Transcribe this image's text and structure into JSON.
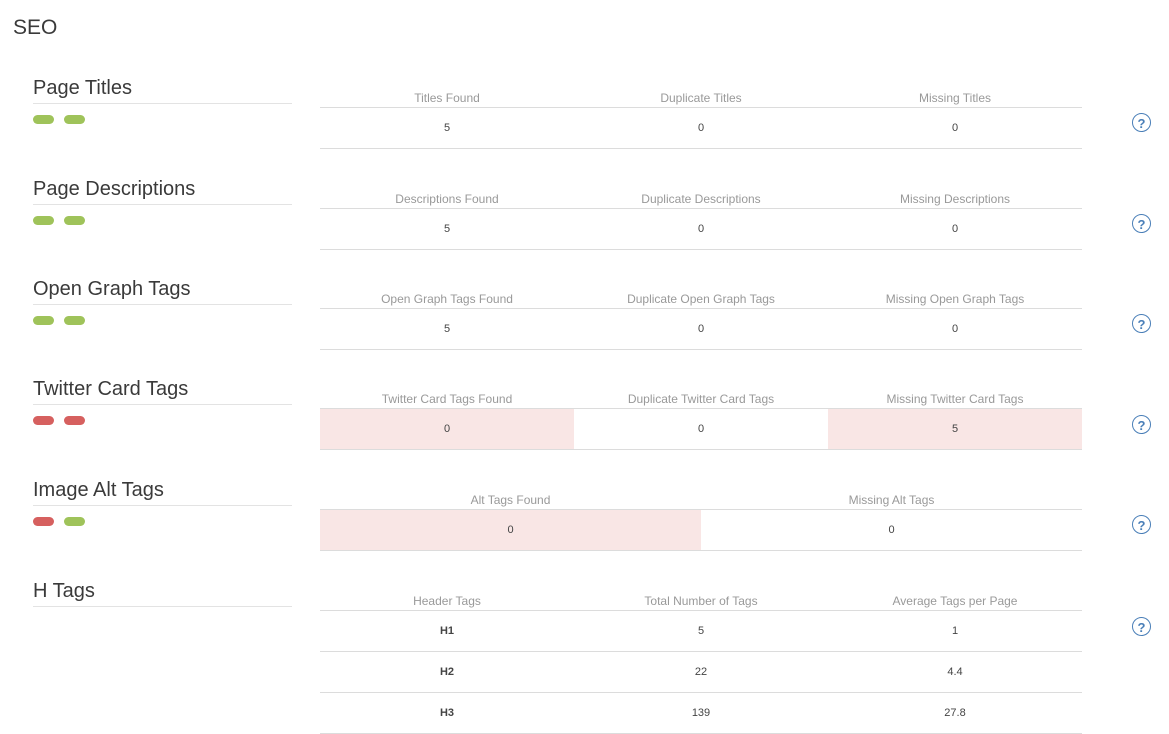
{
  "page": {
    "title": "SEO"
  },
  "help_icon_glyph": "?",
  "sections": {
    "page_titles": {
      "label": "Page Titles",
      "status": [
        "good",
        "good"
      ],
      "headers": [
        "Titles Found",
        "Duplicate Titles",
        "Missing Titles"
      ],
      "values": [
        "5",
        "0",
        "0"
      ]
    },
    "page_descriptions": {
      "label": "Page Descriptions",
      "status": [
        "good",
        "good"
      ],
      "headers": [
        "Descriptions Found",
        "Duplicate Descriptions",
        "Missing Descriptions"
      ],
      "values": [
        "5",
        "0",
        "0"
      ]
    },
    "open_graph": {
      "label": "Open Graph Tags",
      "status": [
        "good",
        "good"
      ],
      "headers": [
        "Open Graph Tags Found",
        "Duplicate Open Graph Tags",
        "Missing Open Graph Tags"
      ],
      "values": [
        "5",
        "0",
        "0"
      ]
    },
    "twitter_card": {
      "label": "Twitter Card Tags",
      "status": [
        "bad",
        "bad"
      ],
      "headers": [
        "Twitter Card Tags Found",
        "Duplicate Twitter Card Tags",
        "Missing Twitter Card Tags"
      ],
      "values": [
        "0",
        "0",
        "5"
      ]
    },
    "image_alt": {
      "label": "Image Alt Tags",
      "status": [
        "bad",
        "good"
      ],
      "headers": [
        "Alt Tags Found",
        "Missing Alt Tags"
      ],
      "values": [
        "0",
        "0"
      ]
    },
    "h_tags": {
      "label": "H Tags",
      "headers": [
        "Header Tags",
        "Total Number of Tags",
        "Average Tags per Page"
      ],
      "rows": [
        [
          "H1",
          "5",
          "1"
        ],
        [
          "H2",
          "22",
          "4.4"
        ],
        [
          "H3",
          "139",
          "27.8"
        ]
      ]
    }
  },
  "colors": {
    "good": "#9fc35a",
    "bad": "#d6605f",
    "alert_cell": "#f9e6e5",
    "help": "#4a7fb8"
  }
}
